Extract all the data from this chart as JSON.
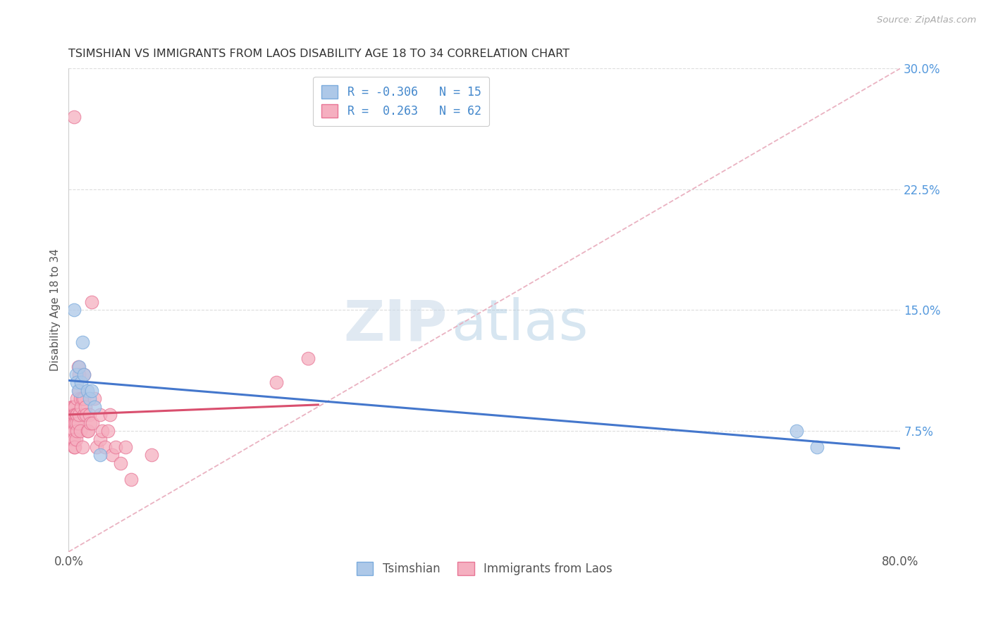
{
  "title": "TSIMSHIAN VS IMMIGRANTS FROM LAOS DISABILITY AGE 18 TO 34 CORRELATION CHART",
  "source": "Source: ZipAtlas.com",
  "ylabel": "Disability Age 18 to 34",
  "xlim": [
    0,
    0.8
  ],
  "ylim": [
    0,
    0.3
  ],
  "xticks": [
    0.0,
    0.1,
    0.2,
    0.3,
    0.4,
    0.5,
    0.6,
    0.7,
    0.8
  ],
  "xtick_labels": [
    "0.0%",
    "",
    "",
    "",
    "",
    "",
    "",
    "",
    "80.0%"
  ],
  "ytick_labels_right": [
    "7.5%",
    "15.0%",
    "22.5%",
    "30.0%"
  ],
  "yticks_right": [
    0.075,
    0.15,
    0.225,
    0.3
  ],
  "tsimshian_color": "#adc8e8",
  "laos_color": "#f5afc0",
  "tsimshian_edge": "#7aabdd",
  "laos_edge": "#e87595",
  "trend_blue": "#4477cc",
  "trend_pink": "#d94f6e",
  "ref_line_color": "#e8aabb",
  "legend_R_tsimshian": "-0.306",
  "legend_N_tsimshian": "15",
  "legend_R_laos": "0.263",
  "legend_N_laos": "62",
  "tsimshian_x": [
    0.005,
    0.007,
    0.008,
    0.009,
    0.01,
    0.012,
    0.013,
    0.015,
    0.018,
    0.02,
    0.022,
    0.025,
    0.03,
    0.7,
    0.72
  ],
  "tsimshian_y": [
    0.15,
    0.11,
    0.105,
    0.1,
    0.115,
    0.105,
    0.13,
    0.11,
    0.1,
    0.095,
    0.1,
    0.09,
    0.06,
    0.075,
    0.065
  ],
  "laos_x": [
    0.003,
    0.003,
    0.003,
    0.004,
    0.004,
    0.004,
    0.004,
    0.004,
    0.005,
    0.005,
    0.005,
    0.005,
    0.005,
    0.005,
    0.005,
    0.006,
    0.006,
    0.006,
    0.006,
    0.007,
    0.007,
    0.007,
    0.008,
    0.008,
    0.008,
    0.009,
    0.009,
    0.01,
    0.01,
    0.01,
    0.011,
    0.011,
    0.012,
    0.013,
    0.013,
    0.015,
    0.015,
    0.015,
    0.016,
    0.017,
    0.018,
    0.019,
    0.02,
    0.021,
    0.022,
    0.023,
    0.025,
    0.027,
    0.03,
    0.03,
    0.032,
    0.035,
    0.038,
    0.04,
    0.042,
    0.045,
    0.05,
    0.055,
    0.06,
    0.08,
    0.2,
    0.23
  ],
  "laos_y": [
    0.09,
    0.085,
    0.08,
    0.09,
    0.085,
    0.08,
    0.075,
    0.07,
    0.27,
    0.09,
    0.085,
    0.08,
    0.075,
    0.07,
    0.065,
    0.09,
    0.085,
    0.08,
    0.065,
    0.085,
    0.08,
    0.07,
    0.095,
    0.085,
    0.075,
    0.115,
    0.08,
    0.11,
    0.1,
    0.085,
    0.095,
    0.075,
    0.09,
    0.095,
    0.065,
    0.11,
    0.095,
    0.085,
    0.09,
    0.085,
    0.075,
    0.075,
    0.085,
    0.08,
    0.155,
    0.08,
    0.095,
    0.065,
    0.085,
    0.07,
    0.075,
    0.065,
    0.075,
    0.085,
    0.06,
    0.065,
    0.055,
    0.065,
    0.045,
    0.06,
    0.105,
    0.12
  ],
  "watermark_zip": "ZIP",
  "watermark_atlas": "atlas",
  "background_color": "#ffffff",
  "grid_color": "#dddddd"
}
